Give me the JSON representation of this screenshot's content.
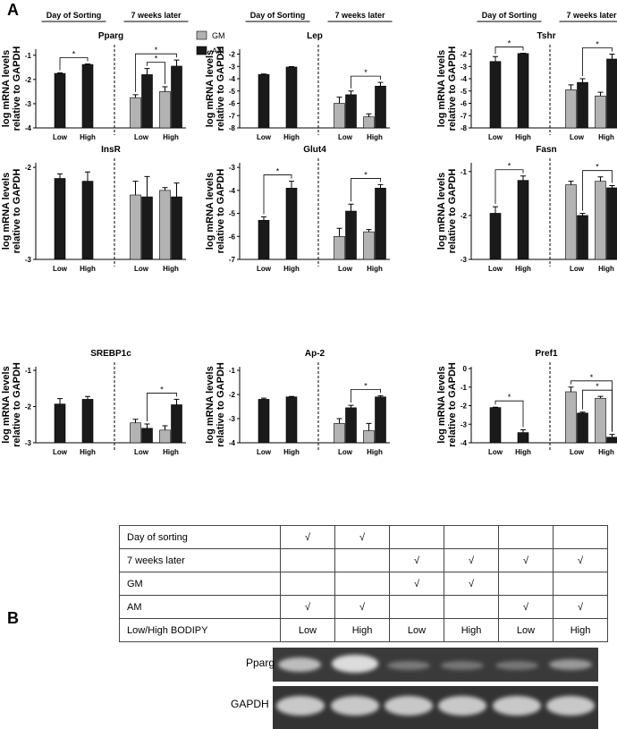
{
  "panel_labels": [
    "A",
    "B"
  ],
  "chart_data": [
    {
      "type": "bar",
      "title": "Pparg",
      "ylabel": [
        "log mRNA levels",
        "relative to GAPDH"
      ],
      "group_labels": [
        "Day of Sorting",
        "7 weeks later"
      ],
      "categories": [
        "Low",
        "High",
        "Low",
        "High"
      ],
      "ylim": [
        -4,
        -0.75
      ],
      "yticks": [
        -4,
        -3,
        -2,
        -1
      ],
      "series": [
        {
          "name": "GM",
          "color": "#b3b3b3",
          "values": [
            null,
            null,
            -2.75,
            -2.5
          ],
          "errors": [
            null,
            null,
            0.12,
            0.2
          ]
        },
        {
          "name": "AM",
          "color": "#1a1a1a",
          "values": [
            -1.75,
            -1.38,
            -1.8,
            -1.45
          ],
          "errors": [
            0.02,
            0.02,
            0.25,
            0.25
          ]
        }
      ],
      "significance": [
        {
          "label": "*",
          "from": [
            1,
            0
          ],
          "to": [
            1,
            1
          ]
        },
        {
          "label": "*",
          "from": [
            1,
            2
          ],
          "to": [
            0,
            3
          ]
        },
        {
          "label": "*",
          "from": [
            0,
            2
          ],
          "to": [
            1,
            3
          ]
        }
      ]
    },
    {
      "type": "bar",
      "title": "Lep",
      "ylabel": [
        "log mRNA levels",
        "relative to GAPDH"
      ],
      "group_labels": [
        "Day of Sorting",
        "7 weeks later"
      ],
      "categories": [
        "Low",
        "High",
        "Low",
        "High"
      ],
      "ylim": [
        -8,
        -1.6
      ],
      "yticks": [
        -8,
        -7,
        -6,
        -5,
        -4,
        -3,
        -2
      ],
      "series": [
        {
          "color": "#b3b3b3",
          "values": [
            null,
            null,
            -6,
            -7.1
          ],
          "errors": [
            null,
            null,
            0.5,
            0.25
          ]
        },
        {
          "color": "#1a1a1a",
          "values": [
            -3.65,
            -3.05,
            -5.3,
            -4.6
          ],
          "errors": [
            0.03,
            0.03,
            0.3,
            0.3
          ]
        }
      ],
      "significance": [
        {
          "label": "*",
          "from": [
            1,
            2
          ],
          "to": [
            1,
            3
          ]
        }
      ]
    },
    {
      "type": "bar",
      "title": "Tshr",
      "ylabel": [
        "log mRNA levels",
        "relative to GAPDH"
      ],
      "group_labels": [
        "Day of Sorting",
        "7 weeks later"
      ],
      "categories": [
        "Low",
        "High",
        "Low",
        "High"
      ],
      "ylim": [
        -8,
        -1.6
      ],
      "yticks": [
        -8,
        -7,
        -6,
        -5,
        -4,
        -3,
        -2
      ],
      "series": [
        {
          "color": "#b3b3b3",
          "values": [
            null,
            null,
            -4.9,
            -5.4
          ],
          "errors": [
            null,
            null,
            0.4,
            0.3
          ]
        },
        {
          "color": "#1a1a1a",
          "values": [
            -2.6,
            -1.95,
            -4.3,
            -2.4
          ],
          "errors": [
            0.4,
            0.02,
            0.3,
            0.4
          ]
        }
      ],
      "significance": [
        {
          "label": "*",
          "from": [
            1,
            0
          ],
          "to": [
            1,
            1
          ]
        },
        {
          "label": "*",
          "from": [
            1,
            2
          ],
          "to": [
            1,
            3
          ]
        }
      ]
    },
    {
      "type": "bar",
      "title": "InsR",
      "ylabel": [
        "log mRNA levels",
        "relative to GAPDH"
      ],
      "categories": [
        "Low",
        "High",
        "Low",
        "High"
      ],
      "ylim": [
        -3,
        -1.95
      ],
      "yticks": [
        -3,
        -2
      ],
      "series": [
        {
          "color": "#b3b3b3",
          "values": [
            null,
            null,
            -2.3,
            -2.25
          ],
          "errors": [
            null,
            null,
            0.15,
            0.03
          ]
        },
        {
          "color": "#1a1a1a",
          "values": [
            -2.12,
            -2.15,
            -2.32,
            -2.32
          ],
          "errors": [
            0.05,
            0.1,
            0.22,
            0.15
          ]
        }
      ],
      "significance": []
    },
    {
      "type": "bar",
      "title": "Glut4",
      "ylabel": [
        "log mRNA levels",
        "relative to GAPDH"
      ],
      "categories": [
        "Low",
        "High",
        "Low",
        "High"
      ],
      "ylim": [
        -7,
        -2.8
      ],
      "yticks": [
        -7,
        -6,
        -5,
        -4,
        -3
      ],
      "series": [
        {
          "color": "#b3b3b3",
          "values": [
            null,
            null,
            -6,
            -5.8
          ],
          "errors": [
            null,
            null,
            0.35,
            0.1
          ]
        },
        {
          "color": "#1a1a1a",
          "values": [
            -5.3,
            -3.9,
            -4.9,
            -3.9
          ],
          "errors": [
            0.15,
            0.3,
            0.3,
            0.15
          ]
        }
      ],
      "significance": [
        {
          "label": "*",
          "from": [
            1,
            0
          ],
          "to": [
            1,
            1
          ]
        },
        {
          "label": "*",
          "from": [
            1,
            2
          ],
          "to": [
            1,
            3
          ]
        }
      ]
    },
    {
      "type": "bar",
      "title": "Fasn",
      "ylabel": [
        "log mRNA levels",
        "relative to GAPDH"
      ],
      "categories": [
        "Low",
        "High",
        "Low",
        "High"
      ],
      "ylim": [
        -3,
        -0.8
      ],
      "yticks": [
        -3,
        -2,
        -1
      ],
      "series": [
        {
          "color": "#b3b3b3",
          "values": [
            null,
            null,
            -1.3,
            -1.22
          ],
          "errors": [
            null,
            null,
            0.08,
            0.1
          ]
        },
        {
          "color": "#1a1a1a",
          "values": [
            -1.95,
            -1.2,
            -2.0,
            -1.37
          ],
          "errors": [
            0.15,
            0.1,
            0.05,
            0.05
          ]
        }
      ],
      "significance": [
        {
          "label": "*",
          "from": [
            1,
            0
          ],
          "to": [
            1,
            1
          ]
        },
        {
          "label": "*",
          "from": [
            1,
            2
          ],
          "to": [
            1,
            3
          ]
        }
      ]
    },
    {
      "type": "bar",
      "title": "SREBP1c",
      "ylabel": [
        "log mRNA levels",
        "relative to GAPDH"
      ],
      "categories": [
        "Low",
        "High",
        "Low",
        "High"
      ],
      "ylim": [
        -3,
        -0.9
      ],
      "yticks": [
        -3,
        -2,
        -1
      ],
      "series": [
        {
          "color": "#b3b3b3",
          "values": [
            null,
            null,
            -2.45,
            -2.65
          ],
          "errors": [
            null,
            null,
            0.1,
            0.12
          ]
        },
        {
          "color": "#1a1a1a",
          "values": [
            -1.93,
            -1.8,
            -2.6,
            -1.95
          ],
          "errors": [
            0.15,
            0.08,
            0.12,
            0.15
          ]
        }
      ],
      "significance": [
        {
          "label": "*",
          "from": [
            1,
            2
          ],
          "to": [
            1,
            3
          ]
        }
      ]
    },
    {
      "type": "bar",
      "title": "Ap-2",
      "ylabel": [
        "log mRNA levels",
        "relative to GAPDH"
      ],
      "categories": [
        "Low",
        "High",
        "Low",
        "High"
      ],
      "ylim": [
        -4,
        -0.85
      ],
      "yticks": [
        -4,
        -3,
        -2,
        -1
      ],
      "series": [
        {
          "color": "#b3b3b3",
          "values": [
            null,
            null,
            -3.2,
            -3.5
          ],
          "errors": [
            null,
            null,
            0.2,
            0.3
          ]
        },
        {
          "color": "#1a1a1a",
          "values": [
            -2.2,
            -2.1,
            -2.55,
            -2.1
          ],
          "errors": [
            0.05,
            0.02,
            0.1,
            0.05
          ]
        }
      ],
      "significance": [
        {
          "label": "*",
          "from": [
            1,
            2
          ],
          "to": [
            1,
            3
          ]
        }
      ]
    },
    {
      "type": "bar",
      "title": "Pref1",
      "ylabel": [
        "log mRNA levels",
        "relative to GAPDH"
      ],
      "categories": [
        "Low",
        "High",
        "Low",
        "High"
      ],
      "ylim": [
        -4,
        0.1
      ],
      "yticks": [
        -4,
        -3,
        -2,
        -1,
        0
      ],
      "series": [
        {
          "color": "#b3b3b3",
          "values": [
            null,
            null,
            -1.25,
            -1.6
          ],
          "errors": [
            null,
            null,
            0.25,
            0.1
          ]
        },
        {
          "color": "#1a1a1a",
          "values": [
            -2.1,
            -3.45,
            -2.4,
            -3.7
          ],
          "errors": [
            0.02,
            0.15,
            0.05,
            0.15
          ]
        }
      ],
      "significance": [
        {
          "label": "*",
          "from": [
            1,
            0
          ],
          "to": [
            1,
            1
          ]
        },
        {
          "label": "*",
          "from": [
            1,
            2
          ],
          "to": [
            1,
            3
          ]
        },
        {
          "label": "*",
          "from": [
            0,
            2
          ],
          "to": [
            1,
            3
          ]
        }
      ]
    }
  ],
  "table": {
    "rows": [
      [
        "Day of sorting",
        "√",
        "√",
        null,
        null,
        null,
        null
      ],
      [
        "7 weeks later",
        null,
        null,
        "√",
        "√",
        "√",
        "√"
      ],
      [
        "GM",
        null,
        null,
        "√",
        "√",
        null,
        null
      ],
      [
        "AM",
        "√",
        "√",
        null,
        null,
        "√",
        "√"
      ],
      [
        "Low/High BODIPY",
        "Low",
        "High",
        "Low",
        "High",
        "Low",
        "High"
      ]
    ]
  },
  "gel": {
    "labels": [
      "Pparg",
      "GAPDH"
    ]
  }
}
